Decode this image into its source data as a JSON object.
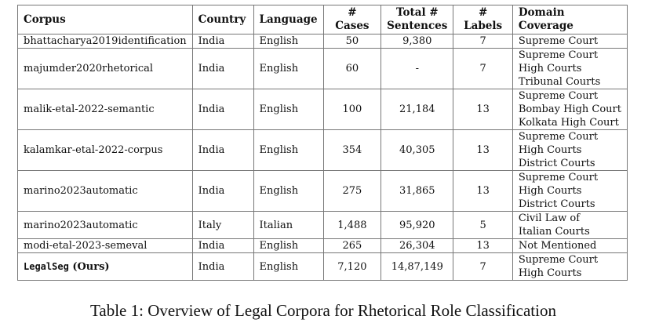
{
  "table": {
    "headers": [
      "Corpus",
      "Country",
      "Language",
      "# Cases",
      "Total #\nSentences",
      "# Labels",
      "Domain Coverage"
    ],
    "rows": [
      {
        "corpus": "bhattacharya2019identification",
        "country": "India",
        "language": "English",
        "cases": "50",
        "sentences": "9,380",
        "labels": "7",
        "domain": [
          "Supreme Court"
        ]
      },
      {
        "corpus": "majumder2020rhetorical",
        "country": "India",
        "language": "English",
        "cases": "60",
        "sentences": "-",
        "labels": "7",
        "domain": [
          "Supreme Court",
          "High Courts",
          "Tribunal Courts"
        ]
      },
      {
        "corpus": "malik-etal-2022-semantic",
        "country": "India",
        "language": "English",
        "cases": "100",
        "sentences": "21,184",
        "labels": "13",
        "domain": [
          "Supreme Court",
          "Bombay High Court",
          "Kolkata High Court"
        ]
      },
      {
        "corpus": "kalamkar-etal-2022-corpus",
        "country": "India",
        "language": "English",
        "cases": "354",
        "sentences": "40,305",
        "labels": "13",
        "domain": [
          "Supreme Court",
          "High Courts",
          "District Courts"
        ]
      },
      {
        "corpus": "marino2023automatic",
        "country": "India",
        "language": "English",
        "cases": "275",
        "sentences": "31,865",
        "labels": "13",
        "domain": [
          "Supreme Court",
          "High Courts",
          "District Courts"
        ]
      },
      {
        "corpus": "marino2023automatic",
        "country": "Italy",
        "language": "Italian",
        "cases": "1,488",
        "sentences": "95,920",
        "labels": "5",
        "domain": [
          "Civil Law of",
          "Italian Courts"
        ]
      },
      {
        "corpus": "modi-etal-2023-semeval",
        "country": "India",
        "language": "English",
        "cases": "265",
        "sentences": "26,304",
        "labels": "13",
        "domain": [
          "Not Mentioned"
        ]
      },
      {
        "corpus": "LegalSeg (Ours)",
        "country": "India",
        "language": "English",
        "cases": "7,120",
        "sentences": "14,87,149",
        "labels": "7",
        "domain": [
          "Supreme Court",
          "High Courts"
        ],
        "mono": true
      }
    ]
  },
  "caption": "Table 1: Overview of Legal Corpora for Rhetorical Role Classification"
}
